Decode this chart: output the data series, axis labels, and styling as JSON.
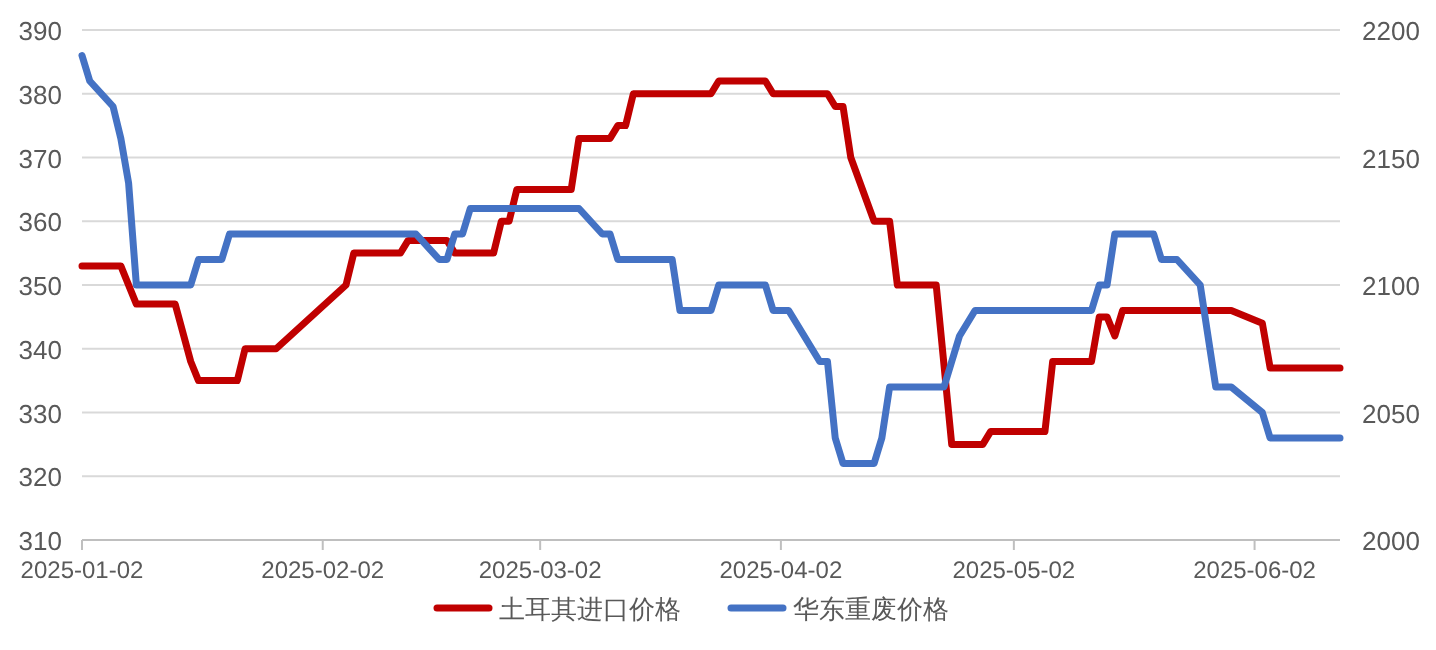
{
  "chart_data": {
    "type": "line",
    "legend": "bottom",
    "grid": "y",
    "line_style": "solid",
    "marker": "none",
    "xlim": [
      "2025-01-02",
      "2025-06-13"
    ],
    "xticks": [
      "2025-01-02",
      "2025-02-02",
      "2025-03-02",
      "2025-04-02",
      "2025-05-02",
      "2025-06-02"
    ],
    "ylim": [
      310,
      390
    ],
    "yticks": [
      310,
      320,
      330,
      340,
      350,
      360,
      370,
      380,
      390
    ],
    "y2lim": [
      2000,
      2200
    ],
    "y2ticks": [
      2000,
      2050,
      2100,
      2150,
      2200
    ],
    "series": [
      {
        "name": "土耳其进口价格",
        "color": "#c00000",
        "x": [
          "2025-01-02",
          "2025-01-07",
          "2025-01-09",
          "2025-01-14",
          "2025-01-16",
          "2025-01-17",
          "2025-01-22",
          "2025-01-23",
          "2025-01-27",
          "2025-02-05",
          "2025-02-06",
          "2025-02-12",
          "2025-02-13",
          "2025-02-18",
          "2025-02-19",
          "2025-02-24",
          "2025-02-25",
          "2025-02-26",
          "2025-02-27",
          "2025-03-06",
          "2025-03-07",
          "2025-03-11",
          "2025-03-12",
          "2025-03-13",
          "2025-03-14",
          "2025-03-24",
          "2025-03-25",
          "2025-03-31",
          "2025-04-01",
          "2025-04-08",
          "2025-04-09",
          "2025-04-10",
          "2025-04-11",
          "2025-04-14",
          "2025-04-16",
          "2025-04-17",
          "2025-04-22",
          "2025-04-24",
          "2025-04-28",
          "2025-04-29",
          "2025-05-06",
          "2025-05-07",
          "2025-05-12",
          "2025-05-13",
          "2025-05-14",
          "2025-05-15",
          "2025-05-16",
          "2025-05-30",
          "2025-06-03",
          "2025-06-04",
          "2025-06-13"
        ],
        "values": [
          353,
          353,
          347,
          347,
          338,
          335,
          335,
          340,
          340,
          350,
          355,
          355,
          357,
          357,
          355,
          355,
          360,
          360,
          365,
          365,
          373,
          373,
          375,
          375,
          380,
          380,
          382,
          382,
          380,
          380,
          378,
          378,
          370,
          360,
          360,
          350,
          350,
          325,
          325,
          327,
          327,
          338,
          338,
          345,
          345,
          342,
          346,
          346,
          344,
          337,
          337
        ]
      },
      {
        "name": "华东重废价格",
        "color": "#4472c4",
        "axis": "y2",
        "x": [
          "2025-01-02",
          "2025-01-03",
          "2025-01-06",
          "2025-01-07",
          "2025-01-08",
          "2025-01-09",
          "2025-01-16",
          "2025-01-17",
          "2025-01-20",
          "2025-01-21",
          "2025-02-14",
          "2025-02-17",
          "2025-02-18",
          "2025-02-19",
          "2025-02-20",
          "2025-02-21",
          "2025-03-07",
          "2025-03-10",
          "2025-03-11",
          "2025-03-12",
          "2025-03-19",
          "2025-03-20",
          "2025-03-24",
          "2025-03-25",
          "2025-03-31",
          "2025-04-01",
          "2025-04-03",
          "2025-04-07",
          "2025-04-08",
          "2025-04-09",
          "2025-04-10",
          "2025-04-14",
          "2025-04-15",
          "2025-04-16",
          "2025-04-23",
          "2025-04-25",
          "2025-04-27",
          "2025-05-12",
          "2025-05-13",
          "2025-05-14",
          "2025-05-15",
          "2025-05-20",
          "2025-05-21",
          "2025-05-23",
          "2025-05-26",
          "2025-05-28",
          "2025-05-30",
          "2025-06-03",
          "2025-06-04",
          "2025-06-13"
        ],
        "values": [
          2190,
          2180,
          2170,
          2157.5,
          2140,
          2100,
          2100,
          2110,
          2110,
          2120,
          2120,
          2110,
          2110,
          2120,
          2120,
          2130,
          2130,
          2120,
          2120,
          2110,
          2110,
          2090,
          2090,
          2100,
          2100,
          2090,
          2090,
          2070,
          2070,
          2040,
          2030,
          2030,
          2040,
          2060,
          2060,
          2080,
          2090,
          2090,
          2100,
          2100,
          2120,
          2120,
          2110,
          2110,
          2100,
          2060,
          2060,
          2050,
          2040,
          2040
        ]
      }
    ]
  }
}
